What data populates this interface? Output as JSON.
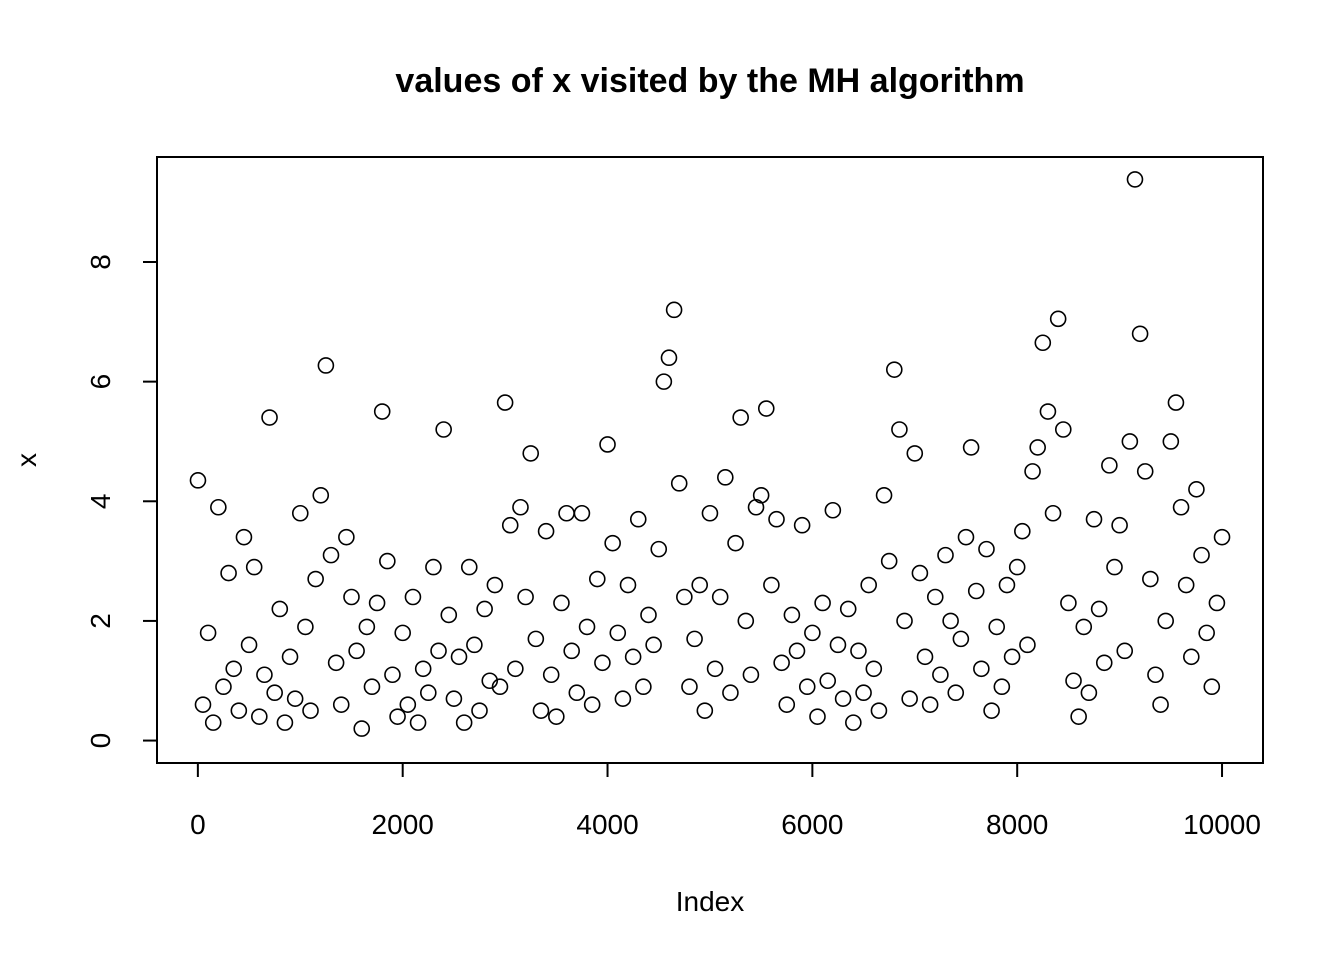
{
  "chart_data": {
    "type": "scatter",
    "title": "values of x visited by the MH algorithm",
    "x_label": "Index",
    "y_label": "x",
    "x": [
      1,
      50,
      100,
      150,
      200,
      250,
      300,
      350,
      400,
      450,
      500,
      550,
      600,
      650,
      700,
      750,
      800,
      850,
      900,
      950,
      1000,
      1050,
      1100,
      1150,
      1200,
      1250,
      1300,
      1350,
      1400,
      1450,
      1500,
      1550,
      1600,
      1650,
      1700,
      1750,
      1800,
      1850,
      1900,
      1950,
      2000,
      2050,
      2100,
      2150,
      2200,
      2250,
      2300,
      2350,
      2400,
      2450,
      2500,
      2550,
      2600,
      2650,
      2700,
      2750,
      2800,
      2850,
      2900,
      2950,
      3000,
      3050,
      3100,
      3150,
      3200,
      3250,
      3300,
      3350,
      3400,
      3450,
      3500,
      3550,
      3600,
      3650,
      3700,
      3750,
      3800,
      3850,
      3900,
      3950,
      4000,
      4050,
      4100,
      4150,
      4200,
      4250,
      4300,
      4350,
      4400,
      4450,
      4500,
      4550,
      4600,
      4650,
      4700,
      4750,
      4800,
      4850,
      4900,
      4950,
      5000,
      5050,
      5100,
      5150,
      5200,
      5250,
      5300,
      5350,
      5400,
      5450,
      5500,
      5550,
      5600,
      5650,
      5700,
      5750,
      5800,
      5850,
      5900,
      5950,
      6000,
      6050,
      6100,
      6150,
      6200,
      6250,
      6300,
      6350,
      6400,
      6450,
      6500,
      6550,
      6600,
      6650,
      6700,
      6750,
      6800,
      6850,
      6900,
      6950,
      7000,
      7050,
      7100,
      7150,
      7200,
      7250,
      7300,
      7350,
      7400,
      7450,
      7500,
      7550,
      7600,
      7650,
      7700,
      7750,
      7800,
      7850,
      7900,
      7950,
      8000,
      8050,
      8100,
      8150,
      8200,
      8250,
      8300,
      8350,
      8400,
      8450,
      8500,
      8550,
      8600,
      8650,
      8700,
      8750,
      8800,
      8850,
      8900,
      8950,
      9000,
      9050,
      9100,
      9150,
      9200,
      9250,
      9300,
      9350,
      9400,
      9450,
      9500,
      9550,
      9600,
      9650,
      9700,
      9750,
      9800,
      9850,
      9900,
      9950,
      10000
    ],
    "values": [
      4.35,
      0.6,
      1.8,
      0.3,
      3.9,
      0.9,
      2.8,
      1.2,
      0.5,
      3.4,
      1.6,
      2.9,
      0.4,
      1.1,
      5.4,
      0.8,
      2.2,
      0.3,
      1.4,
      0.7,
      3.8,
      1.9,
      0.5,
      2.7,
      4.1,
      6.27,
      3.1,
      1.3,
      0.6,
      3.4,
      2.4,
      1.5,
      0.2,
      1.9,
      0.9,
      2.3,
      5.5,
      3.0,
      1.1,
      0.4,
      1.8,
      0.6,
      2.4,
      0.3,
      1.2,
      0.8,
      2.9,
      1.5,
      5.2,
      2.1,
      0.7,
      1.4,
      0.3,
      2.9,
      1.6,
      0.5,
      2.2,
      1.0,
      2.6,
      0.9,
      5.65,
      3.6,
      1.2,
      3.9,
      2.4,
      4.8,
      1.7,
      0.5,
      3.5,
      1.1,
      0.4,
      2.3,
      3.8,
      1.5,
      0.8,
      3.8,
      1.9,
      0.6,
      2.7,
      1.3,
      4.95,
      3.3,
      1.8,
      0.7,
      2.6,
      1.4,
      3.7,
      0.9,
      2.1,
      1.6,
      3.2,
      6.0,
      6.4,
      7.2,
      4.3,
      2.4,
      0.9,
      1.7,
      2.6,
      0.5,
      3.8,
      1.2,
      2.4,
      4.4,
      0.8,
      3.3,
      5.4,
      2.0,
      1.1,
      3.9,
      4.1,
      5.55,
      2.6,
      3.7,
      1.3,
      0.6,
      2.1,
      1.5,
      3.6,
      0.9,
      1.8,
      0.4,
      2.3,
      1.0,
      3.85,
      1.6,
      0.7,
      2.2,
      0.3,
      1.5,
      0.8,
      2.6,
      1.2,
      0.5,
      4.1,
      3.0,
      6.2,
      5.2,
      2.0,
      0.7,
      4.8,
      2.8,
      1.4,
      0.6,
      2.4,
      1.1,
      3.1,
      2.0,
      0.8,
      1.7,
      3.4,
      4.9,
      2.5,
      1.2,
      3.2,
      0.5,
      1.9,
      0.9,
      2.6,
      1.4,
      2.9,
      3.5,
      1.6,
      4.5,
      4.9,
      6.65,
      5.5,
      3.8,
      7.05,
      5.2,
      2.3,
      1.0,
      0.4,
      1.9,
      0.8,
      3.7,
      2.2,
      1.3,
      4.6,
      2.9,
      3.6,
      1.5,
      5.0,
      9.38,
      6.8,
      4.5,
      2.7,
      1.1,
      0.6,
      2.0,
      5.0,
      5.65,
      3.9,
      2.6,
      1.4,
      4.2,
      3.1,
      1.8,
      0.9,
      2.3,
      3.4
    ],
    "color": "#000000",
    "xlim": [
      -399,
      10400
    ],
    "ylim": [
      -0.375,
      9.755
    ],
    "xticks": [
      0,
      2000,
      4000,
      6000,
      8000,
      10000
    ],
    "yticks": [
      0,
      2,
      4,
      6,
      8
    ]
  }
}
